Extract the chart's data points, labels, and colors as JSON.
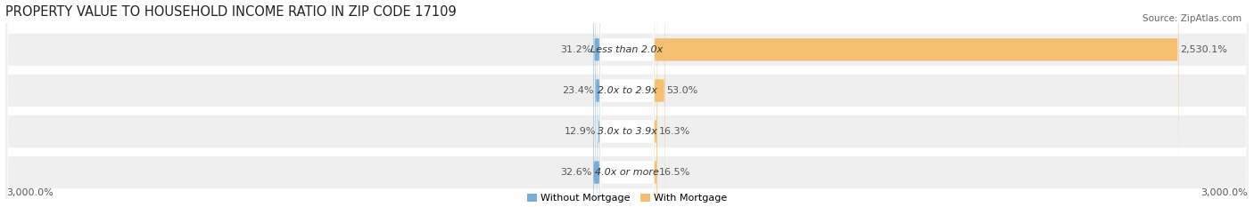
{
  "title": "PROPERTY VALUE TO HOUSEHOLD INCOME RATIO IN ZIP CODE 17109",
  "source": "Source: ZipAtlas.com",
  "categories": [
    "Less than 2.0x",
    "2.0x to 2.9x",
    "3.0x to 3.9x",
    "4.0x or more"
  ],
  "without_mortgage": [
    31.2,
    23.4,
    12.9,
    32.6
  ],
  "with_mortgage": [
    2530.1,
    53.0,
    16.3,
    16.5
  ],
  "without_mortgage_label": [
    "31.2%",
    "23.4%",
    "12.9%",
    "32.6%"
  ],
  "with_mortgage_label": [
    "2,530.1%",
    "53.0%",
    "16.3%",
    "16.5%"
  ],
  "color_without": "#7aadd4",
  "color_with": "#f5bf72",
  "row_bg_color": "#efefef",
  "xlim": [
    -3000,
    3000
  ],
  "xlabel_left": "3,000.0%",
  "xlabel_right": "3,000.0%",
  "legend_without": "Without Mortgage",
  "legend_with": "With Mortgage",
  "title_fontsize": 10.5,
  "source_fontsize": 7.5,
  "label_fontsize": 8,
  "axis_fontsize": 8
}
